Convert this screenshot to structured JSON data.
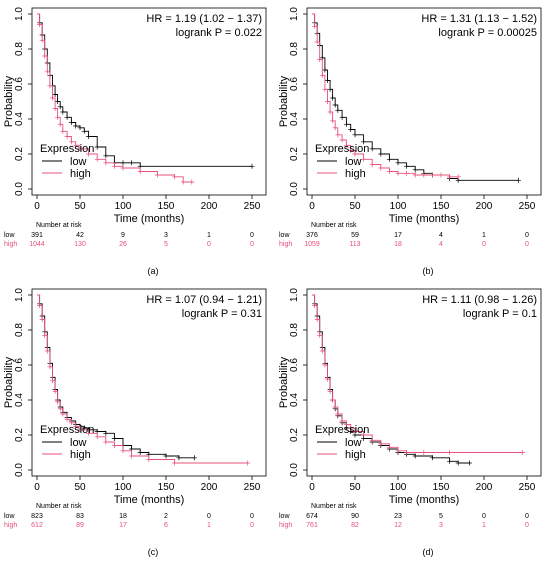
{
  "colors": {
    "low": "#000000",
    "high": "#e8507a",
    "frame": "#000000"
  },
  "chart_data": [
    {
      "type": "line",
      "panel_label": "(a)",
      "hr_text": "HR = 1.19 (1.02 − 1.37)",
      "logrank_text": "logrank P = 0.022",
      "xlabel": "Time (months)",
      "ylabel": "Probability",
      "xlim": [
        0,
        250
      ],
      "ylim": [
        0,
        1.0
      ],
      "xticks": [
        "0",
        "50",
        "100",
        "150",
        "200",
        "250"
      ],
      "yticks": [
        "0.0",
        "0.2",
        "0.4",
        "0.6",
        "0.8",
        "1.0"
      ],
      "legend": {
        "title": "Expression",
        "placement": "bottom-left"
      },
      "risk_title": "Number at risk",
      "risk_times": [
        0,
        50,
        100,
        150,
        200,
        250
      ],
      "series": [
        {
          "name": "low",
          "x": [
            0,
            3,
            6,
            9,
            12,
            15,
            18,
            21,
            24,
            27,
            30,
            35,
            40,
            45,
            50,
            55,
            60,
            70,
            80,
            90,
            100,
            110,
            120,
            250
          ],
          "y": [
            1.0,
            0.95,
            0.88,
            0.8,
            0.72,
            0.65,
            0.59,
            0.54,
            0.5,
            0.47,
            0.44,
            0.41,
            0.38,
            0.36,
            0.35,
            0.33,
            0.3,
            0.24,
            0.19,
            0.15,
            0.15,
            0.15,
            0.13,
            0.13
          ],
          "risk": [
            "391",
            "42",
            "9",
            "3",
            "1",
            "0"
          ]
        },
        {
          "name": "high",
          "x": [
            0,
            3,
            6,
            9,
            12,
            15,
            18,
            21,
            24,
            27,
            30,
            35,
            40,
            45,
            50,
            60,
            70,
            80,
            90,
            100,
            120,
            140,
            160,
            170,
            180
          ],
          "y": [
            1.0,
            0.94,
            0.85,
            0.76,
            0.67,
            0.59,
            0.52,
            0.46,
            0.41,
            0.37,
            0.33,
            0.3,
            0.27,
            0.25,
            0.23,
            0.2,
            0.17,
            0.15,
            0.13,
            0.12,
            0.1,
            0.08,
            0.07,
            0.04,
            0.04
          ],
          "risk": [
            "1044",
            "130",
            "26",
            "5",
            "0",
            "0"
          ]
        }
      ]
    },
    {
      "type": "line",
      "panel_label": "(b)",
      "hr_text": "HR = 1.31 (1.13 − 1.52)",
      "logrank_text": "logrank P = 0.00025",
      "xlabel": "Time (months)",
      "ylabel": "Probability",
      "xlim": [
        0,
        250
      ],
      "ylim": [
        0,
        1.0
      ],
      "xticks": [
        "0",
        "50",
        "100",
        "150",
        "200",
        "250"
      ],
      "yticks": [
        "0.0",
        "0.2",
        "0.4",
        "0.6",
        "0.8",
        "1.0"
      ],
      "legend": {
        "title": "Expression",
        "placement": "bottom-left"
      },
      "risk_title": "Number at risk",
      "risk_times": [
        0,
        50,
        100,
        150,
        200,
        250
      ],
      "series": [
        {
          "name": "low",
          "x": [
            0,
            3,
            6,
            9,
            12,
            15,
            18,
            21,
            24,
            27,
            30,
            35,
            40,
            45,
            50,
            60,
            70,
            80,
            90,
            100,
            110,
            120,
            130,
            140,
            160,
            170,
            240
          ],
          "y": [
            1.0,
            0.95,
            0.89,
            0.82,
            0.75,
            0.68,
            0.62,
            0.57,
            0.52,
            0.48,
            0.45,
            0.41,
            0.37,
            0.34,
            0.31,
            0.27,
            0.23,
            0.2,
            0.17,
            0.15,
            0.13,
            0.11,
            0.09,
            0.08,
            0.06,
            0.05,
            0.05
          ],
          "risk": [
            "376",
            "59",
            "17",
            "4",
            "1",
            "0"
          ]
        },
        {
          "name": "high",
          "x": [
            0,
            3,
            6,
            9,
            12,
            15,
            18,
            21,
            24,
            27,
            30,
            35,
            40,
            45,
            50,
            60,
            70,
            80,
            90,
            100,
            110,
            120,
            130,
            140,
            150,
            160,
            170
          ],
          "y": [
            1.0,
            0.93,
            0.84,
            0.74,
            0.65,
            0.57,
            0.5,
            0.44,
            0.39,
            0.35,
            0.31,
            0.28,
            0.25,
            0.22,
            0.2,
            0.17,
            0.14,
            0.12,
            0.1,
            0.09,
            0.09,
            0.08,
            0.08,
            0.08,
            0.08,
            0.07,
            0.07
          ],
          "risk": [
            "1059",
            "113",
            "18",
            "4",
            "0",
            "0"
          ]
        }
      ]
    },
    {
      "type": "line",
      "panel_label": "(c)",
      "hr_text": "HR = 1.07 (0.94 − 1.21)",
      "logrank_text": "logrank P = 0.31",
      "xlabel": "Time (months)",
      "ylabel": "Probability",
      "xlim": [
        0,
        250
      ],
      "ylim": [
        0,
        1.0
      ],
      "xticks": [
        "0",
        "50",
        "100",
        "150",
        "200",
        "250"
      ],
      "yticks": [
        "0.0",
        "0.2",
        "0.4",
        "0.6",
        "0.8",
        "1.0"
      ],
      "legend": {
        "title": "Expression",
        "placement": "bottom-left"
      },
      "risk_title": "Number at risk",
      "risk_times": [
        0,
        50,
        100,
        150,
        200,
        250
      ],
      "series": [
        {
          "name": "low",
          "x": [
            0,
            3,
            6,
            9,
            12,
            15,
            18,
            21,
            24,
            27,
            30,
            35,
            40,
            45,
            50,
            55,
            60,
            70,
            80,
            90,
            100,
            110,
            120,
            130,
            150,
            165,
            183
          ],
          "y": [
            1.0,
            0.95,
            0.88,
            0.79,
            0.7,
            0.61,
            0.53,
            0.46,
            0.4,
            0.36,
            0.33,
            0.3,
            0.28,
            0.26,
            0.25,
            0.24,
            0.23,
            0.22,
            0.21,
            0.18,
            0.14,
            0.12,
            0.1,
            0.09,
            0.08,
            0.07,
            0.07
          ],
          "risk": [
            "823",
            "83",
            "18",
            "2",
            "0",
            "0"
          ]
        },
        {
          "name": "high",
          "x": [
            0,
            3,
            6,
            9,
            12,
            15,
            18,
            21,
            24,
            27,
            30,
            35,
            40,
            45,
            50,
            60,
            70,
            80,
            90,
            100,
            110,
            130,
            160,
            245
          ],
          "y": [
            1.0,
            0.94,
            0.86,
            0.77,
            0.68,
            0.59,
            0.51,
            0.45,
            0.39,
            0.35,
            0.32,
            0.29,
            0.27,
            0.25,
            0.23,
            0.21,
            0.19,
            0.16,
            0.14,
            0.11,
            0.08,
            0.06,
            0.04,
            0.04
          ],
          "risk": [
            "612",
            "89",
            "17",
            "6",
            "1",
            "0"
          ]
        }
      ]
    },
    {
      "type": "line",
      "panel_label": "(d)",
      "hr_text": "HR = 1.11 (0.98 − 1.26)",
      "logrank_text": "logrank P = 0.1",
      "xlabel": "Time (months)",
      "ylabel": "Probability",
      "xlim": [
        0,
        250
      ],
      "ylim": [
        0,
        1.0
      ],
      "xticks": [
        "0",
        "50",
        "100",
        "150",
        "200",
        "250"
      ],
      "yticks": [
        "0.0",
        "0.2",
        "0.4",
        "0.6",
        "0.8",
        "1.0"
      ],
      "legend": {
        "title": "Expression",
        "placement": "bottom-left"
      },
      "risk_title": "Number at risk",
      "risk_times": [
        0,
        50,
        100,
        150,
        200,
        250
      ],
      "series": [
        {
          "name": "low",
          "x": [
            0,
            3,
            6,
            9,
            12,
            15,
            18,
            21,
            24,
            27,
            30,
            35,
            40,
            45,
            50,
            60,
            70,
            80,
            90,
            100,
            110,
            120,
            140,
            160,
            170,
            183
          ],
          "y": [
            1.0,
            0.95,
            0.88,
            0.79,
            0.7,
            0.61,
            0.53,
            0.46,
            0.4,
            0.35,
            0.31,
            0.27,
            0.24,
            0.22,
            0.2,
            0.18,
            0.16,
            0.14,
            0.12,
            0.1,
            0.09,
            0.08,
            0.07,
            0.05,
            0.04,
            0.04
          ],
          "risk": [
            "674",
            "90",
            "23",
            "5",
            "0",
            "0"
          ]
        },
        {
          "name": "high",
          "x": [
            0,
            3,
            6,
            9,
            12,
            15,
            18,
            21,
            24,
            27,
            30,
            35,
            40,
            45,
            50,
            60,
            70,
            80,
            90,
            100,
            110,
            130,
            160,
            245
          ],
          "y": [
            1.0,
            0.94,
            0.86,
            0.77,
            0.68,
            0.6,
            0.52,
            0.45,
            0.4,
            0.36,
            0.32,
            0.28,
            0.26,
            0.24,
            0.22,
            0.2,
            0.17,
            0.15,
            0.13,
            0.11,
            0.1,
            0.1,
            0.1,
            0.1
          ],
          "risk": [
            "761",
            "82",
            "12",
            "3",
            "1",
            "0"
          ]
        }
      ]
    }
  ]
}
